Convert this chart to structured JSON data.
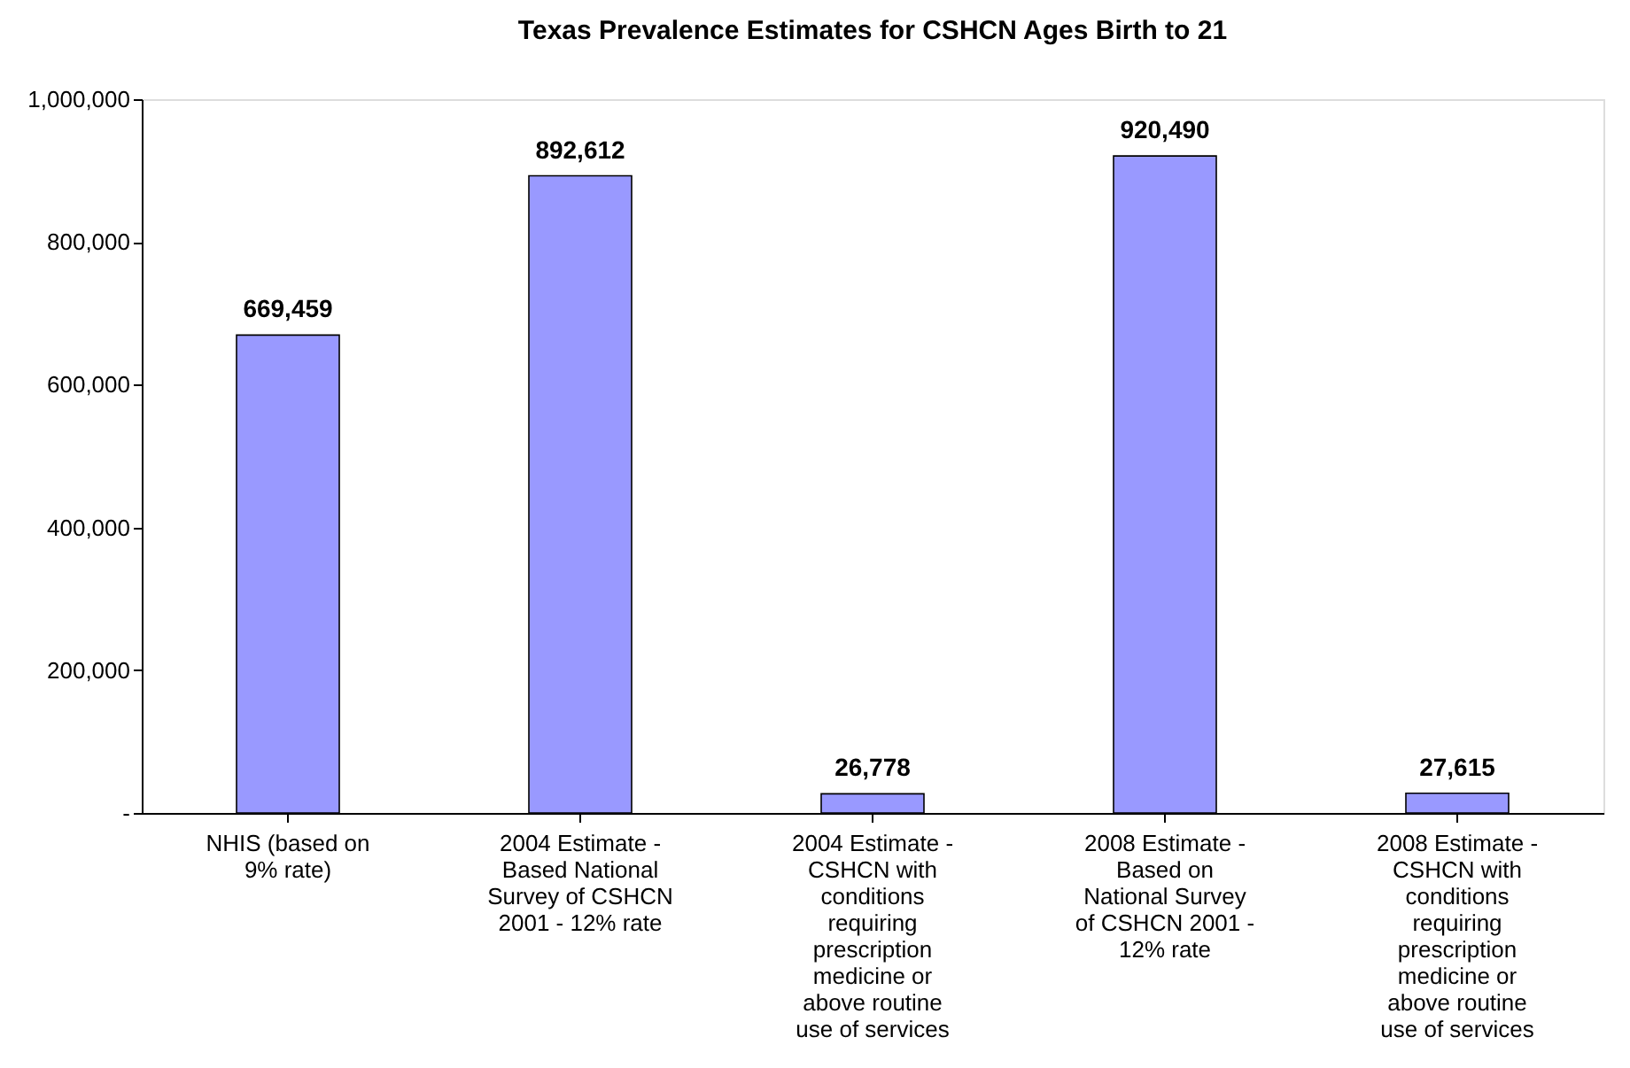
{
  "chart_data": {
    "type": "bar",
    "title": "Texas Prevalence Estimates for CSHCN Ages Birth to 21",
    "categories": [
      "NHIS (based on 9% rate)",
      "2004 Estimate - Based National Survey of CSHCN 2001 - 12% rate",
      "2004 Estimate - CSHCN with conditions requiring prescription medicine or above routine use of services",
      "2008 Estimate - Based on National Survey of CSHCN 2001 - 12% rate",
      "2008 Estimate - CSHCN with conditions requiring prescription medicine or above routine use of services"
    ],
    "values": [
      669459,
      892612,
      26778,
      920490,
      27615
    ],
    "color": "#9999ff",
    "ylim": [
      0,
      1000000
    ],
    "value_labels": [
      "669,459",
      "892,612",
      "26,778",
      "920,490",
      "27,615"
    ],
    "yticks": [
      {
        "value": 0,
        "label": "-"
      },
      {
        "value": 200000,
        "label": "200,000"
      },
      {
        "value": 400000,
        "label": "400,000"
      },
      {
        "value": 600000,
        "label": "600,000"
      },
      {
        "value": 800000,
        "label": "800,000"
      },
      {
        "value": 1000000,
        "label": "1,000,000"
      }
    ],
    "grid": false
  }
}
